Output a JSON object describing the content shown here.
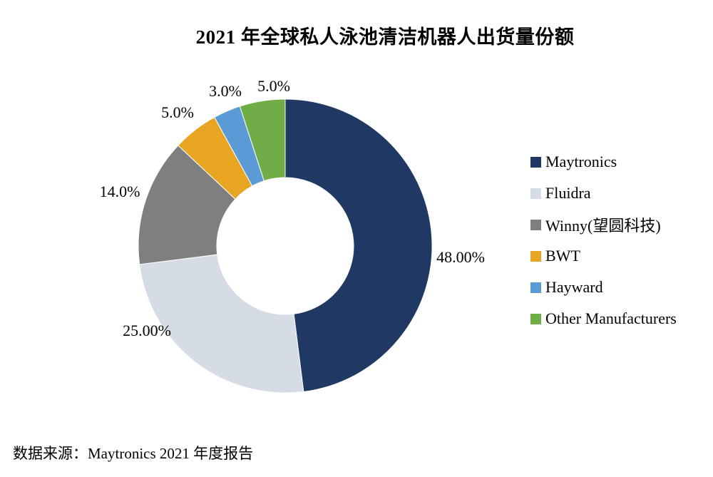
{
  "title": "2021 年全球私人泳池清洁机器人出货量份额",
  "source": "数据来源：Maytronics 2021 年度报告",
  "chart_data": {
    "type": "pie",
    "subtype": "donut",
    "title": "2021 年全球私人泳池清洁机器人出货量份额",
    "legend_position": "right",
    "start_angle_deg": 0,
    "direction": "clockwise",
    "total": 100,
    "series": [
      {
        "name": "Maytronics",
        "value": 48.0,
        "label": "48.00%",
        "color": "#1F3864"
      },
      {
        "name": "Fluidra",
        "value": 25.0,
        "label": "25.00%",
        "color": "#D6DCE5"
      },
      {
        "name": "Winny(望圆科技)",
        "value": 14.0,
        "label": "14.0%",
        "color": "#7F7F7F"
      },
      {
        "name": "BWT",
        "value": 5.0,
        "label": "5.0%",
        "color": "#E7A522"
      },
      {
        "name": "Hayward",
        "value": 3.0,
        "label": "3.0%",
        "color": "#5B9BD5"
      },
      {
        "name": "Other Manufacturers",
        "value": 5.0,
        "label": "5.0%",
        "color": "#70AD47"
      }
    ]
  }
}
